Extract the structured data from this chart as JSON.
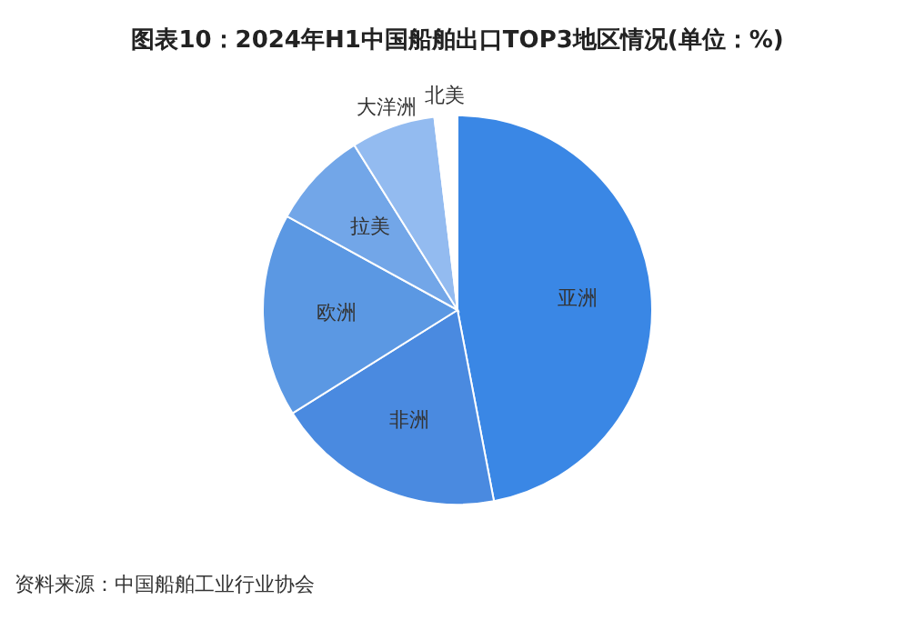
{
  "chart_data": {
    "type": "pie",
    "title": "图表10：2024年H1中国船舶出口TOP3地区情况(单位：%)",
    "categories": [
      "亚洲",
      "非洲",
      "欧洲",
      "拉美",
      "大洋洲",
      "北美"
    ],
    "values": [
      47.0,
      19.1,
      16.9,
      8.1,
      7.0,
      1.9
    ],
    "colors": [
      "#3a87e5",
      "#4a8ae0",
      "#5b98e3",
      "#72a6e8",
      "#93bbf0",
      "#ffffff"
    ],
    "annotations": [
      "资料来源：中国船舶工业行业协会"
    ]
  }
}
